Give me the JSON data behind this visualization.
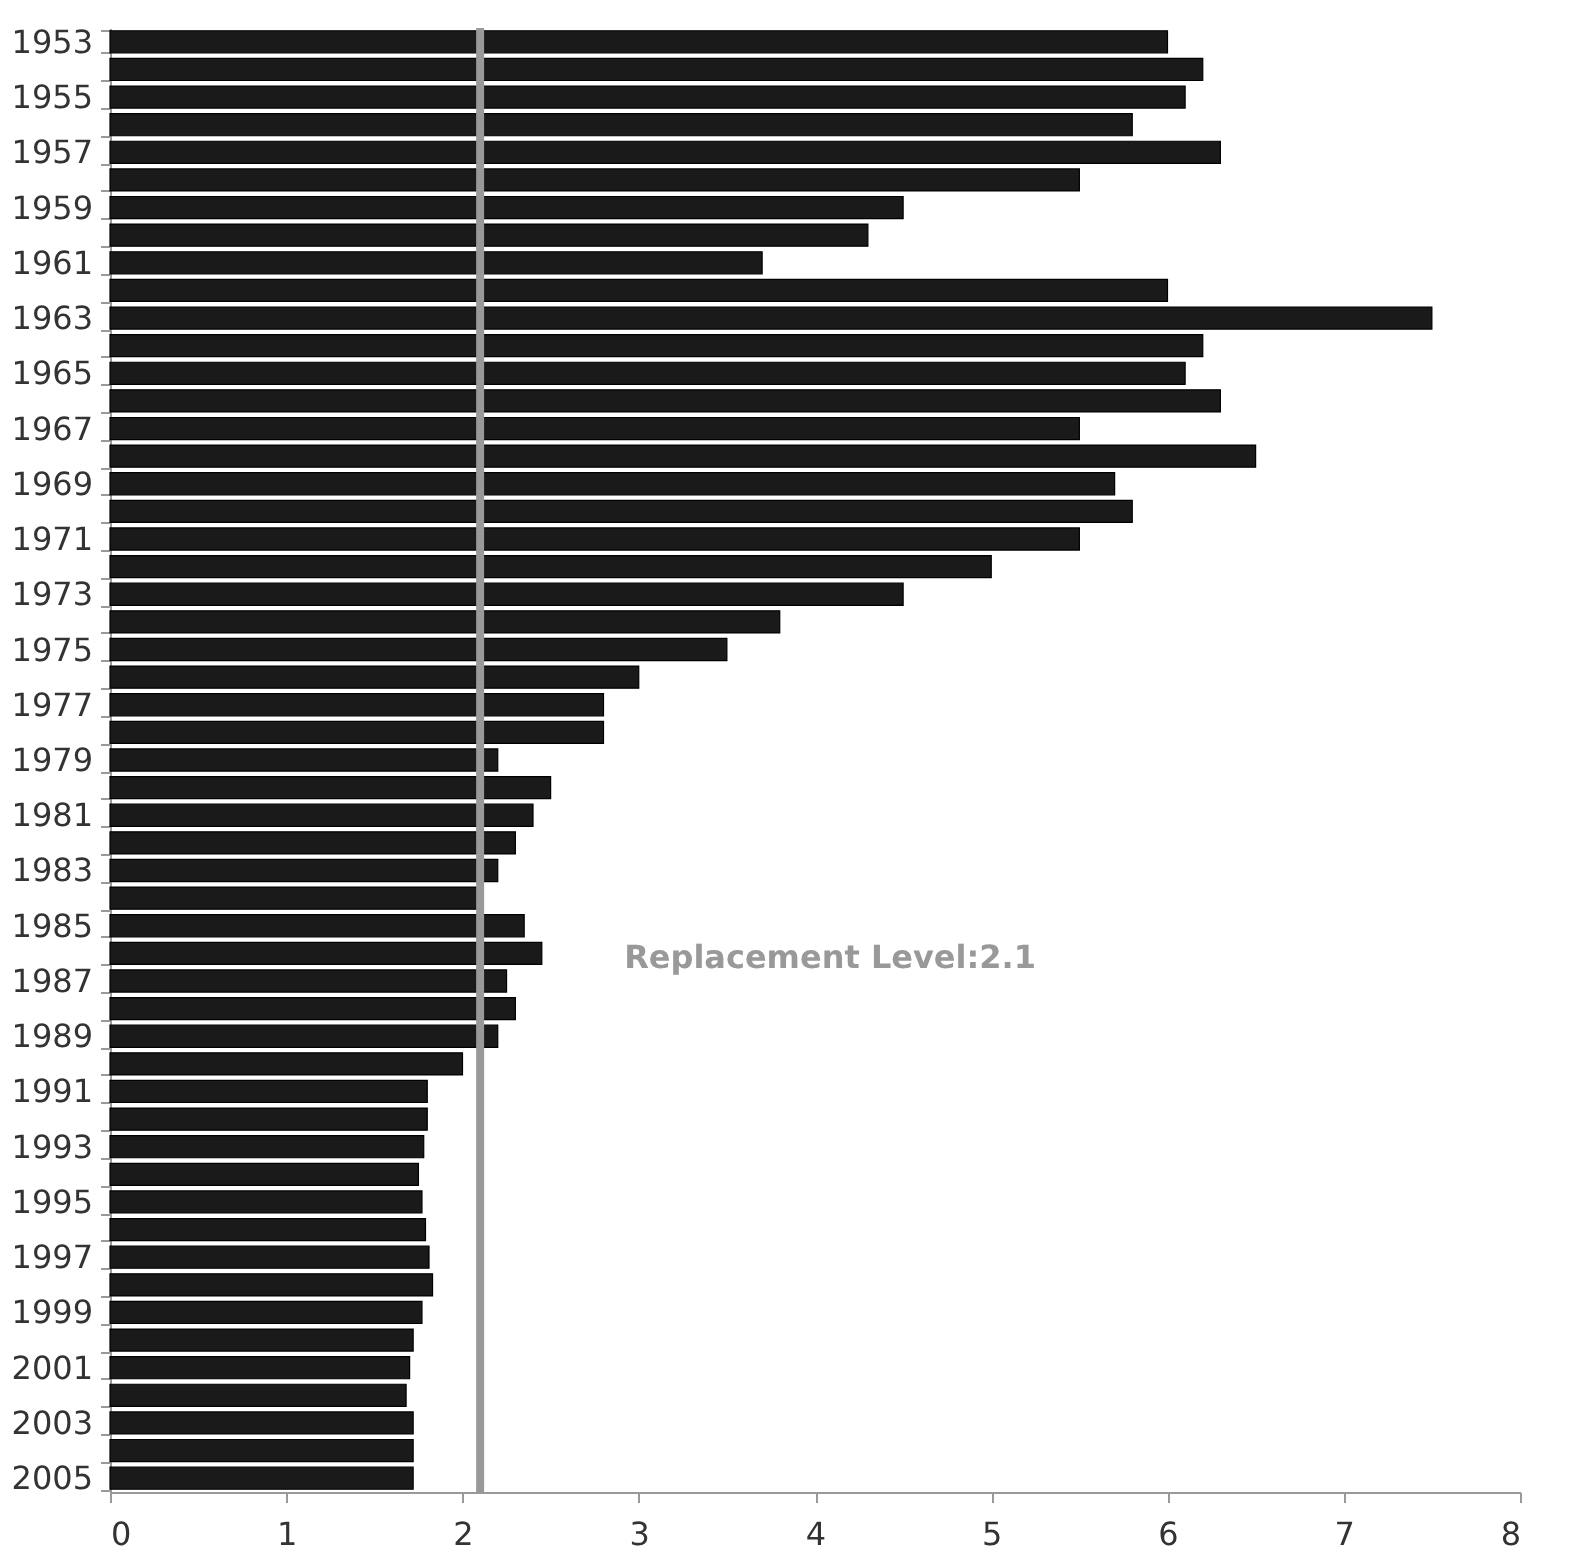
{
  "chart_data": {
    "type": "bar",
    "orientation": "horizontal",
    "categories": [
      "1953",
      null,
      "1955",
      null,
      "1957",
      null,
      "1959",
      null,
      "1961",
      null,
      "1963",
      null,
      "1965",
      null,
      "1967",
      null,
      "1969",
      null,
      "1971",
      null,
      "1973",
      null,
      "1975",
      null,
      "1977",
      null,
      "1979",
      null,
      "1981",
      null,
      "1983",
      null,
      "1985",
      null,
      "1987",
      null,
      "1989",
      null,
      "1991",
      null,
      "1993",
      null,
      "1995",
      null,
      "1997",
      null,
      "1999",
      null,
      "2001",
      null,
      "2003",
      null,
      "2005"
    ],
    "values": [
      6.0,
      6.2,
      6.1,
      5.8,
      6.3,
      5.5,
      4.5,
      4.3,
      3.7,
      6.0,
      7.5,
      6.2,
      6.1,
      6.3,
      5.5,
      6.5,
      5.7,
      5.8,
      5.5,
      5.0,
      4.5,
      3.8,
      3.5,
      3.0,
      2.8,
      2.8,
      2.2,
      2.5,
      2.4,
      2.3,
      2.2,
      2.1,
      2.35,
      2.45,
      2.25,
      2.3,
      2.2,
      2.0,
      1.8,
      1.8,
      1.78,
      1.75,
      1.77,
      1.79,
      1.81,
      1.83,
      1.77,
      1.72,
      1.7,
      1.68,
      1.72,
      1.72,
      1.72
    ],
    "color": "#1a1a1a",
    "xlim": [
      0,
      8
    ],
    "xticks": [
      0,
      1,
      2,
      3,
      4,
      5,
      6,
      7,
      8
    ],
    "grid": false,
    "ref_lines": [
      {
        "axis": "x",
        "value": 2.1,
        "label": "Replacement Level:2.1",
        "color": "#999999"
      }
    ]
  }
}
